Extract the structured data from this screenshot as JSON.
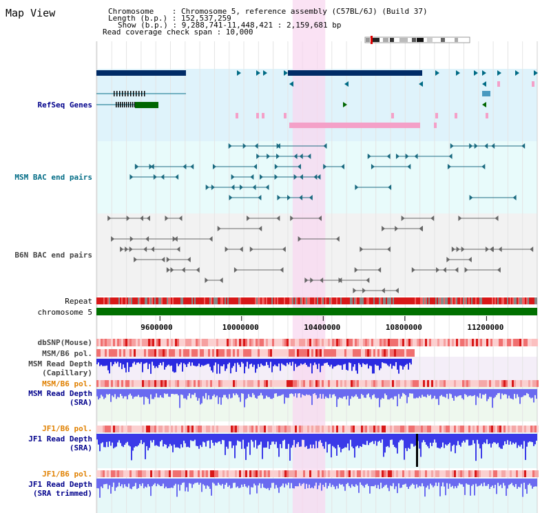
{
  "view_title": "Map View",
  "header": {
    "chromosome_label": "Chromosome    : Chromosome 5, reference assembly (C57BL/6J) (Build 37)",
    "length_label": "Length (b.p.) : 152,537,259",
    "show_label": "Show (b.p.) : 9,288,741-11,448,421 : 2,159,681 bp",
    "coverage_label": "Read coverage check span : 10,000"
  },
  "tracks": {
    "refseq": "RefSeq Genes",
    "msm_bac": "MSM BAC end pairs",
    "b6n_bac": "B6N BAC end pairs",
    "repeat": "Repeat",
    "chromosome": "chromosome 5",
    "dbsnp": "dbSNP(Mouse)",
    "msm_b6_pol_1": "MSM/B6 pol.",
    "msm_depth_cap_1": "MSM Read Depth",
    "msm_depth_cap_2": "(Capillary)",
    "msm_b6_pol_2": "MSM/B6 pol.",
    "msm_depth_sra_1": "MSM Read Depth",
    "msm_depth_sra_2": "(SRA)",
    "jf1_b6_pol_1": "JF1/B6 pol.",
    "jf1_depth_sra_1": "JF1 Read Depth",
    "jf1_depth_sra_2": "(SRA)",
    "jf1_b6_pol_2": "JF1/B6 pol.",
    "jf1_depth_trim_1": "JF1 Read Depth",
    "jf1_depth_trim_2": "(SRA trimmed)"
  },
  "axis": {
    "ticks": [
      "9600000",
      "10000000",
      "10400000",
      "10800000",
      "11200000"
    ],
    "tick_values": [
      9600000,
      10000000,
      10400000,
      10800000,
      11200000
    ],
    "range": [
      9288741,
      11448421
    ]
  },
  "highlight_region": [
    10250000,
    10410000
  ],
  "colors": {
    "refseq_bg": "#dff3fb",
    "msm_bg": "#e8fbfb",
    "b6n_bg": "#f2f2f2",
    "highlight": "#f8d8f0",
    "chromosome": "#007000",
    "depth": "#3a3ae8"
  }
}
